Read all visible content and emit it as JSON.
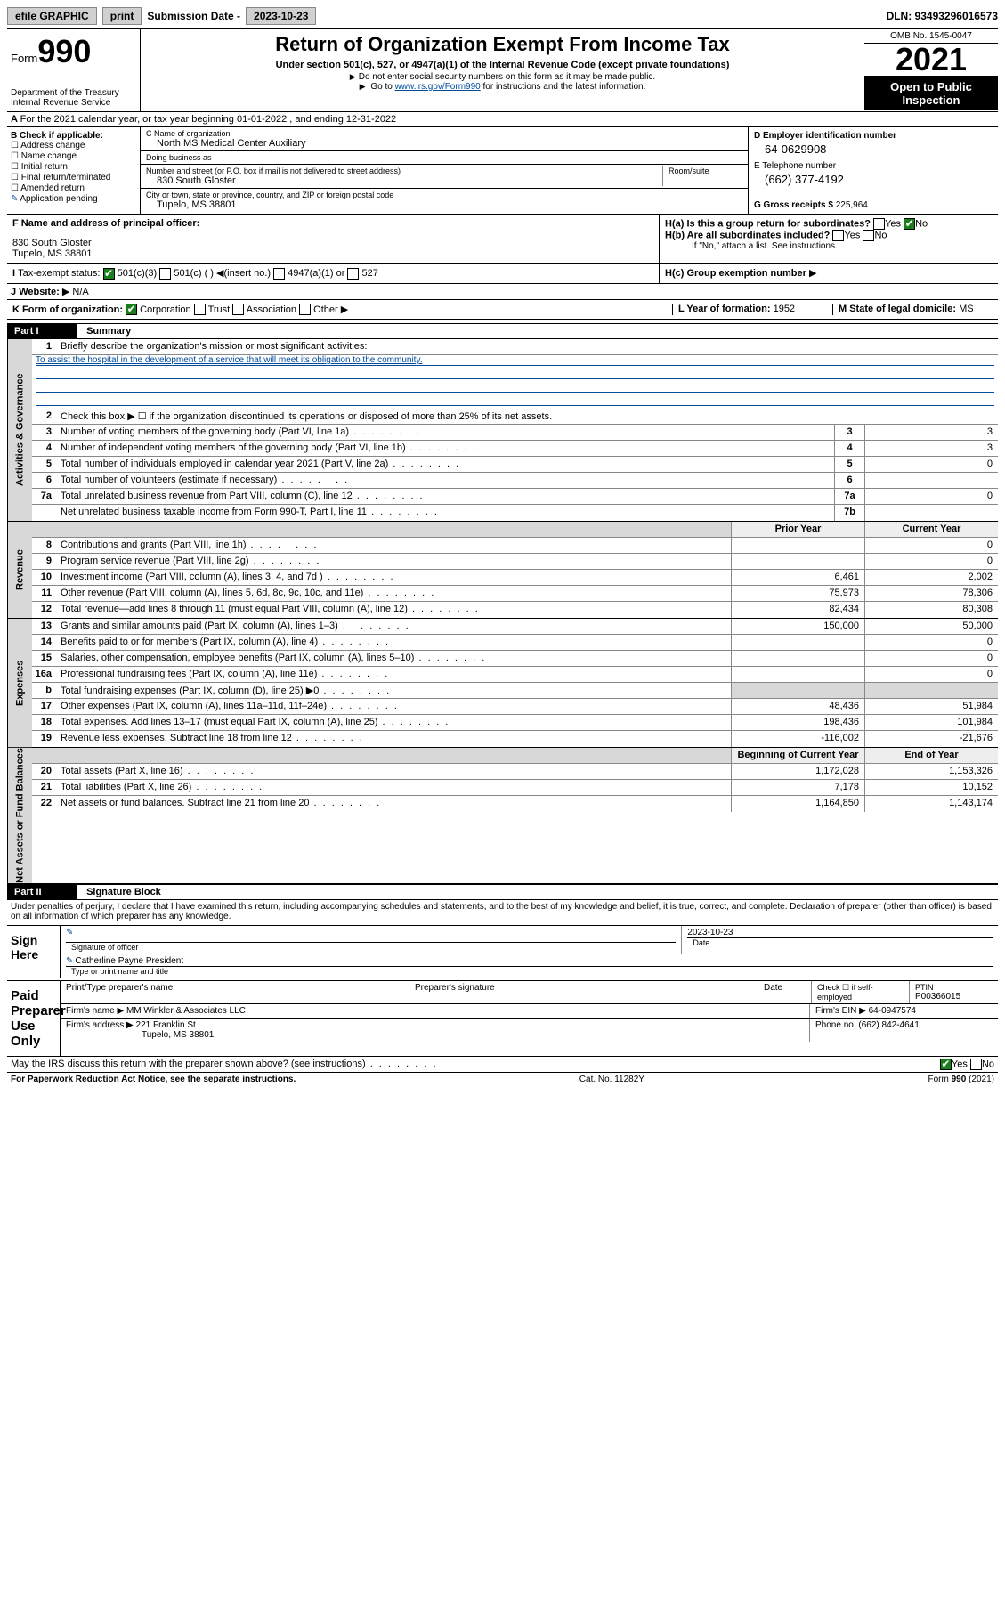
{
  "topbar": {
    "efile": "efile GRAPHIC",
    "print": "print",
    "sub_lbl": "Submission Date -",
    "sub_val": "2023-10-23",
    "dln": "DLN: 93493296016573"
  },
  "header": {
    "form_word": "Form",
    "form_num": "990",
    "title": "Return of Organization Exempt From Income Tax",
    "sub1": "Under section 501(c), 527, or 4947(a)(1) of the Internal Revenue Code (except private foundations)",
    "sub2": "Do not enter social security numbers on this form as it may be made public.",
    "sub3_pre": "Go to ",
    "sub3_link": "www.irs.gov/Form990",
    "sub3_post": " for instructions and the latest information.",
    "omb": "OMB No. 1545-0047",
    "year": "2021",
    "open": "Open to Public Inspection",
    "dept": "Department of the Treasury",
    "irs": "Internal Revenue Service"
  },
  "row_a": "For the 2021 calendar year, or tax year beginning 01-01-2022   , and ending 12-31-2022",
  "col_b": {
    "hdr": "B Check if applicable:",
    "items": [
      "Address change",
      "Name change",
      "Initial return",
      "Final return/terminated",
      "Amended return",
      "Application pending"
    ]
  },
  "col_c": {
    "name_lbl": "C Name of organization",
    "name": "North MS Medical Center Auxiliary",
    "dba_lbl": "Doing business as",
    "dba": "",
    "addr_lbl": "Number and street (or P.O. box if mail is not delivered to street address)",
    "room_lbl": "Room/suite",
    "addr": "830 South Gloster",
    "city_lbl": "City or town, state or province, country, and ZIP or foreign postal code",
    "city": "Tupelo, MS  38801"
  },
  "col_d": {
    "ein_lbl": "D Employer identification number",
    "ein": "64-0629908",
    "tel_lbl": "E Telephone number",
    "tel": "(662) 377-4192",
    "gross_lbl": "G Gross receipts $",
    "gross": "225,964"
  },
  "f": {
    "lbl": "F  Name and address of principal officer:",
    "name": "",
    "addr1": "830 South Gloster",
    "addr2": "Tupelo, MS  38801"
  },
  "h": {
    "a_lbl": "H(a)  Is this a group return for subordinates?",
    "a_yes": "Yes",
    "a_no": "No",
    "b_lbl": "H(b)  Are all subordinates included?",
    "b_yes": "Yes",
    "b_no": "No",
    "b_note": "If \"No,\" attach a list. See instructions.",
    "c_lbl": "H(c)  Group exemption number"
  },
  "i": {
    "lbl": "Tax-exempt status:",
    "opts": [
      "501(c)(3)",
      "501(c) (  )",
      "(insert no.)",
      "4947(a)(1) or",
      "527"
    ]
  },
  "j": {
    "lbl": "Website:",
    "val": "N/A"
  },
  "k": {
    "lbl": "K Form of organization:",
    "opts": [
      "Corporation",
      "Trust",
      "Association",
      "Other"
    ]
  },
  "l": {
    "lbl": "L Year of formation:",
    "val": "1952"
  },
  "m": {
    "lbl": "M State of legal domicile:",
    "val": "MS"
  },
  "part1": {
    "hdr": "Part I",
    "title": "Summary"
  },
  "summary": {
    "q1": "Briefly describe the organization's mission or most significant activities:",
    "mission": "To assist the hospital in the development of a service that will meet its obligation to the community.",
    "q2": "Check this box ▶ ☐  if the organization discontinued its operations or disposed of more than 25% of its net assets.",
    "lines_gov": [
      {
        "n": "3",
        "t": "Number of voting members of the governing body (Part VI, line 1a)",
        "box": "3",
        "v": "3"
      },
      {
        "n": "4",
        "t": "Number of independent voting members of the governing body (Part VI, line 1b)",
        "box": "4",
        "v": "3"
      },
      {
        "n": "5",
        "t": "Total number of individuals employed in calendar year 2021 (Part V, line 2a)",
        "box": "5",
        "v": "0"
      },
      {
        "n": "6",
        "t": "Total number of volunteers (estimate if necessary)",
        "box": "6",
        "v": ""
      },
      {
        "n": "7a",
        "t": "Total unrelated business revenue from Part VIII, column (C), line 12",
        "box": "7a",
        "v": "0"
      },
      {
        "n": "",
        "t": "Net unrelated business taxable income from Form 990-T, Part I, line 11",
        "box": "7b",
        "v": ""
      }
    ],
    "col_hdr": {
      "prior": "Prior Year",
      "current": "Current Year"
    },
    "revenue": [
      {
        "n": "8",
        "t": "Contributions and grants (Part VIII, line 1h)",
        "p": "",
        "c": "0"
      },
      {
        "n": "9",
        "t": "Program service revenue (Part VIII, line 2g)",
        "p": "",
        "c": "0"
      },
      {
        "n": "10",
        "t": "Investment income (Part VIII, column (A), lines 3, 4, and 7d )",
        "p": "6,461",
        "c": "2,002"
      },
      {
        "n": "11",
        "t": "Other revenue (Part VIII, column (A), lines 5, 6d, 8c, 9c, 10c, and 11e)",
        "p": "75,973",
        "c": "78,306"
      },
      {
        "n": "12",
        "t": "Total revenue—add lines 8 through 11 (must equal Part VIII, column (A), line 12)",
        "p": "82,434",
        "c": "80,308"
      }
    ],
    "expenses": [
      {
        "n": "13",
        "t": "Grants and similar amounts paid (Part IX, column (A), lines 1–3)",
        "p": "150,000",
        "c": "50,000"
      },
      {
        "n": "14",
        "t": "Benefits paid to or for members (Part IX, column (A), line 4)",
        "p": "",
        "c": "0"
      },
      {
        "n": "15",
        "t": "Salaries, other compensation, employee benefits (Part IX, column (A), lines 5–10)",
        "p": "",
        "c": "0"
      },
      {
        "n": "16a",
        "t": "Professional fundraising fees (Part IX, column (A), line 11e)",
        "p": "",
        "c": "0"
      },
      {
        "n": "b",
        "t": "Total fundraising expenses (Part IX, column (D), line 25) ▶0",
        "p": "GRAY",
        "c": "GRAY"
      },
      {
        "n": "17",
        "t": "Other expenses (Part IX, column (A), lines 11a–11d, 11f–24e)",
        "p": "48,436",
        "c": "51,984"
      },
      {
        "n": "18",
        "t": "Total expenses. Add lines 13–17 (must equal Part IX, column (A), line 25)",
        "p": "198,436",
        "c": "101,984"
      },
      {
        "n": "19",
        "t": "Revenue less expenses. Subtract line 18 from line 12",
        "p": "-116,002",
        "c": "-21,676"
      }
    ],
    "net_hdr": {
      "beg": "Beginning of Current Year",
      "end": "End of Year"
    },
    "net": [
      {
        "n": "20",
        "t": "Total assets (Part X, line 16)",
        "p": "1,172,028",
        "c": "1,153,326"
      },
      {
        "n": "21",
        "t": "Total liabilities (Part X, line 26)",
        "p": "7,178",
        "c": "10,152"
      },
      {
        "n": "22",
        "t": "Net assets or fund balances. Subtract line 21 from line 20",
        "p": "1,164,850",
        "c": "1,143,174"
      }
    ],
    "vtabs": {
      "gov": "Activities & Governance",
      "rev": "Revenue",
      "exp": "Expenses",
      "net": "Net Assets or Fund Balances"
    }
  },
  "part2": {
    "hdr": "Part II",
    "title": "Signature Block"
  },
  "penalty": "Under penalties of perjury, I declare that I have examined this return, including accompanying schedules and statements, and to the best of my knowledge and belief, it is true, correct, and complete. Declaration of preparer (other than officer) is based on all information of which preparer has any knowledge.",
  "sign": {
    "here": "Sign Here",
    "sig_lbl": "Signature of officer",
    "date_lbl": "Date",
    "date": "2023-10-23",
    "name": "Catherline Payne  President",
    "name_lbl": "Type or print name and title"
  },
  "paid": {
    "hdr": "Paid Preparer Use Only",
    "cols": [
      "Print/Type preparer's name",
      "Preparer's signature",
      "Date"
    ],
    "check_lbl": "Check ☐ if self-employed",
    "ptin_lbl": "PTIN",
    "ptin": "P00366015",
    "firm_name_lbl": "Firm's name",
    "firm_name": "MM Winkler & Associates LLC",
    "firm_ein_lbl": "Firm's EIN",
    "firm_ein": "64-0947574",
    "firm_addr_lbl": "Firm's address",
    "firm_addr1": "221 Franklin St",
    "firm_addr2": "Tupelo, MS  38801",
    "phone_lbl": "Phone no.",
    "phone": "(662) 842-4641"
  },
  "discuss": {
    "q": "May the IRS discuss this return with the preparer shown above? (see instructions)",
    "yes": "Yes",
    "no": "No"
  },
  "footer": {
    "left": "For Paperwork Reduction Act Notice, see the separate instructions.",
    "mid": "Cat. No. 11282Y",
    "right": "Form 990 (2021)"
  },
  "colors": {
    "link": "#004b9b",
    "checked": "#1a7f1a",
    "gray": "#d8d8d8"
  }
}
